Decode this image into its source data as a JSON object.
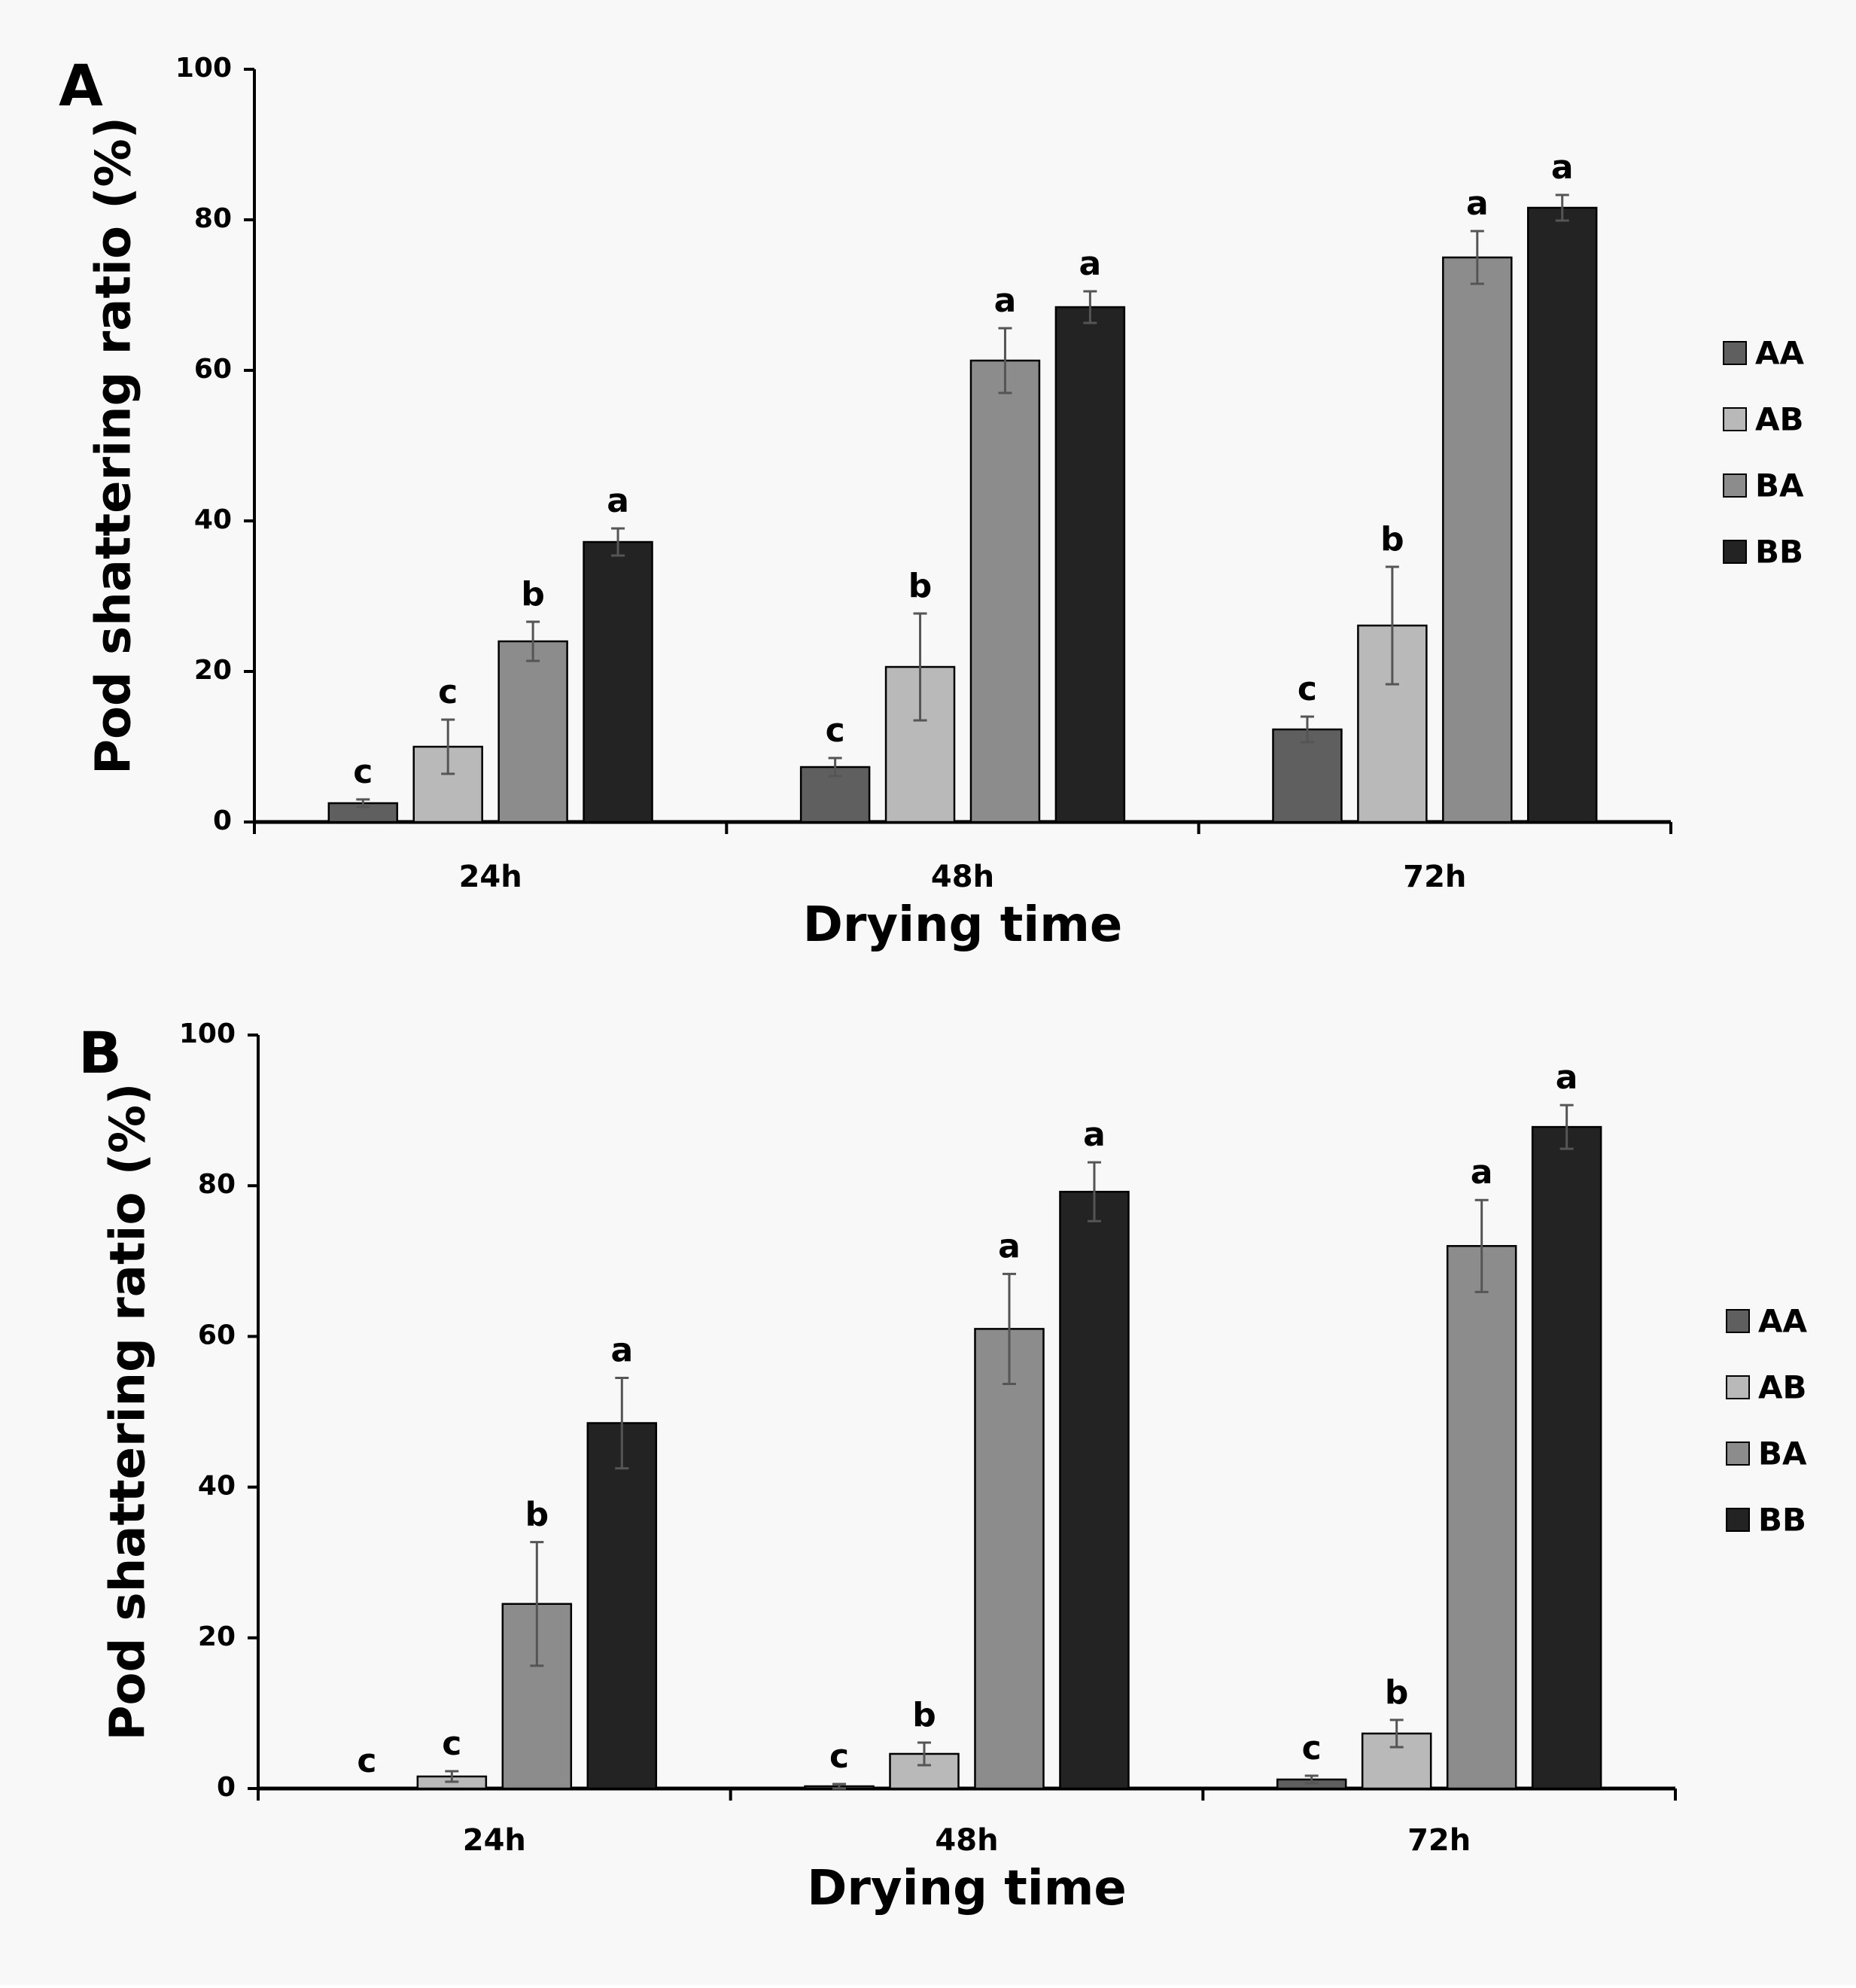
{
  "colors": {
    "AA": "#5f5f5f",
    "AB": "#b9b9b9",
    "BA": "#8c8c8c",
    "BB": "#232323",
    "error_bar": "#555555",
    "axis": "#000000"
  },
  "chart_data": [
    {
      "type": "bar",
      "panel_label": "A",
      "ylabel": "Pod shattering ratio (%)",
      "xlabel": "Drying time",
      "ylim": [
        0,
        100
      ],
      "yticks": [
        "0",
        "20",
        "40",
        "60",
        "80",
        "100"
      ],
      "categories": [
        "24h",
        "48h",
        "72h"
      ],
      "legend": [
        "AA",
        "AB",
        "BA",
        "BB"
      ],
      "series": [
        {
          "name": "AA",
          "values": [
            2.5,
            7.3,
            12.3
          ],
          "errors": [
            0.5,
            1.2,
            1.7
          ],
          "letters": [
            "c",
            "c",
            "c"
          ]
        },
        {
          "name": "AB",
          "values": [
            10.0,
            20.6,
            26.1
          ],
          "errors": [
            3.6,
            7.1,
            7.8
          ],
          "letters": [
            "c",
            "b",
            "b"
          ]
        },
        {
          "name": "BA",
          "values": [
            24.0,
            61.3,
            75.0
          ],
          "errors": [
            2.6,
            4.3,
            3.5
          ],
          "letters": [
            "b",
            "a",
            "a"
          ]
        },
        {
          "name": "BB",
          "values": [
            37.2,
            68.4,
            81.6
          ],
          "errors": [
            1.8,
            2.1,
            1.7
          ],
          "letters": [
            "a",
            "a",
            "a"
          ]
        }
      ]
    },
    {
      "type": "bar",
      "panel_label": "B",
      "ylabel": "Pod shattering ratio (%)",
      "xlabel": "Drying time",
      "ylim": [
        0,
        100
      ],
      "yticks": [
        "0",
        "20",
        "40",
        "60",
        "80",
        "100"
      ],
      "categories": [
        "24h",
        "48h",
        "72h"
      ],
      "legend": [
        "AA",
        "AB",
        "BA",
        "BB"
      ],
      "series": [
        {
          "name": "AA",
          "values": [
            0.0,
            0.3,
            1.2
          ],
          "errors": [
            0.0,
            0.3,
            0.5
          ],
          "letters": [
            "c",
            "c",
            "c"
          ]
        },
        {
          "name": "AB",
          "values": [
            1.6,
            4.6,
            7.3
          ],
          "errors": [
            0.7,
            1.5,
            1.8
          ],
          "letters": [
            "c",
            "b",
            "b"
          ]
        },
        {
          "name": "BA",
          "values": [
            24.5,
            61.0,
            72.0
          ],
          "errors": [
            8.2,
            7.3,
            6.1
          ],
          "letters": [
            "b",
            "a",
            "a"
          ]
        },
        {
          "name": "BB",
          "values": [
            48.5,
            79.2,
            87.8
          ],
          "errors": [
            6.0,
            3.9,
            2.9
          ],
          "letters": [
            "a",
            "a",
            "a"
          ]
        }
      ]
    }
  ]
}
